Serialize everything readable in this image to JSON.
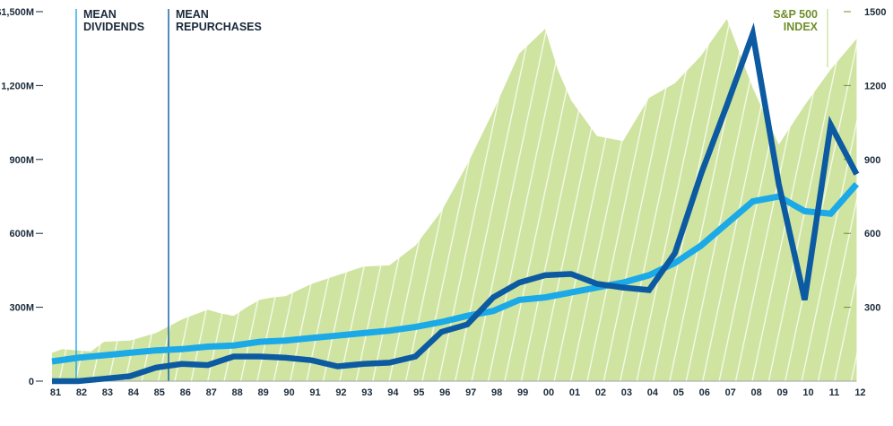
{
  "chart_data": {
    "type": "line",
    "categories": [
      "81",
      "82",
      "83",
      "84",
      "85",
      "86",
      "87",
      "88",
      "89",
      "90",
      "91",
      "92",
      "93",
      "94",
      "95",
      "96",
      "97",
      "98",
      "99",
      "00",
      "01",
      "02",
      "03",
      "04",
      "05",
      "06",
      "07",
      "08",
      "09",
      "10",
      "11",
      "12"
    ],
    "left_axis": {
      "ticks": [
        0,
        300,
        600,
        900,
        1200,
        1500
      ],
      "tick_labels": [
        "0",
        "300M",
        "600M",
        "900M",
        "1,200M",
        "$1,500M"
      ],
      "ylim": [
        0,
        1500
      ]
    },
    "right_axis": {
      "ticks": [
        300,
        600,
        900,
        1200,
        1500
      ],
      "tick_labels": [
        "300",
        "600",
        "900",
        "1200",
        "1500"
      ],
      "ylim": [
        0,
        1500
      ]
    },
    "series": [
      {
        "name": "S&P 500 INDEX",
        "kind": "area",
        "axis": "right",
        "color": "#cfe4a0",
        "stripe_color": "#ffffff",
        "x": [
          0,
          0.4,
          1,
          1.5,
          2,
          3,
          4,
          5,
          5.5,
          6,
          6.5,
          7,
          7.5,
          8,
          8.5,
          9,
          10,
          11,
          12,
          13,
          14,
          15,
          16,
          17,
          18,
          19,
          19.5,
          20,
          21,
          22,
          23,
          24,
          25,
          26,
          27,
          28,
          29,
          30,
          31
        ],
        "values": [
          115,
          130,
          125,
          120,
          160,
          165,
          195,
          250,
          270,
          290,
          275,
          265,
          300,
          330,
          340,
          345,
          395,
          430,
          465,
          470,
          550,
          690,
          880,
          1095,
          1330,
          1430,
          1260,
          1140,
          995,
          975,
          1150,
          1210,
          1320,
          1470,
          1190,
          960,
          1120,
          1265,
          1390
        ]
      },
      {
        "name": "MEAN DIVIDENDS",
        "kind": "line",
        "axis": "left",
        "color": "#1ba9e8",
        "x": [
          0,
          1,
          2,
          3,
          4,
          5,
          6,
          7,
          8,
          9,
          10,
          11,
          12,
          13,
          14,
          15,
          16,
          17,
          18,
          19,
          20,
          21,
          22,
          23,
          24,
          25,
          26,
          27,
          28,
          29,
          30,
          31
        ],
        "values": [
          80,
          95,
          105,
          115,
          125,
          130,
          140,
          145,
          160,
          165,
          175,
          185,
          195,
          205,
          220,
          240,
          265,
          285,
          330,
          340,
          360,
          380,
          400,
          430,
          480,
          550,
          640,
          730,
          750,
          690,
          680,
          800
        ]
      },
      {
        "name": "MEAN REPURCHASES",
        "kind": "line",
        "axis": "left",
        "color": "#0b5aa2",
        "x": [
          0,
          1,
          2,
          3,
          4,
          5,
          6,
          7,
          8,
          9,
          10,
          11,
          12,
          13,
          14,
          15,
          16,
          17,
          18,
          19,
          20,
          21,
          22,
          23,
          24,
          25,
          26,
          27,
          28,
          29,
          30,
          31
        ],
        "values": [
          0,
          0,
          10,
          20,
          55,
          70,
          65,
          100,
          100,
          95,
          85,
          60,
          70,
          75,
          100,
          200,
          230,
          340,
          400,
          430,
          435,
          395,
          380,
          370,
          520,
          840,
          1120,
          1410,
          800,
          330,
          1040,
          840
        ]
      }
    ],
    "legend": {
      "dividends": [
        "MEAN",
        "DIVIDENDS"
      ],
      "repurchases": [
        "MEAN",
        "REPURCHASES"
      ],
      "index": [
        "S&P 500",
        "INDEX"
      ]
    },
    "grid": false
  }
}
